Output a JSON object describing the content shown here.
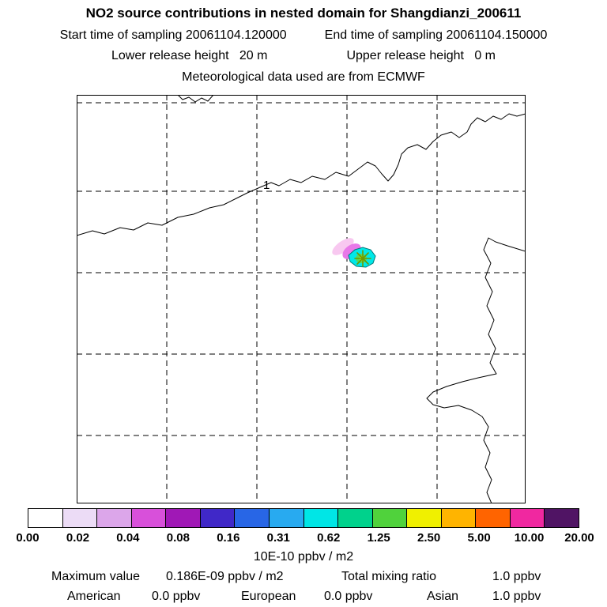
{
  "header": {
    "title": "NO2 source contributions in nested domain for Shangdianzi_200611",
    "start_time": "Start time of sampling 20061104.120000",
    "end_time": "End time of sampling 20061104.150000",
    "lower_release": "Lower release height   20 m",
    "upper_release": "Upper release height   0 m",
    "met_source": "Meteorological data used are from ECMWF"
  },
  "map": {
    "grid_label": "1"
  },
  "colorbar": {
    "units": "10E-10 ppbv / m2",
    "tick_labels": [
      "0.00",
      "0.02",
      "0.04",
      "0.08",
      "0.16",
      "0.31",
      "0.62",
      "1.25",
      "2.50",
      "5.00",
      "10.00",
      "20.00"
    ],
    "segment_colors": [
      "#ffffff",
      "#ecdcf6",
      "#dca6ea",
      "#d850da",
      "#a018b6",
      "#4028c8",
      "#2866e6",
      "#28aaf0",
      "#00e6e6",
      "#00d28c",
      "#50d23c",
      "#f0f000",
      "#ffb400",
      "#ff6400",
      "#f028a0",
      "#501464"
    ]
  },
  "footer": {
    "max_label": "Maximum value",
    "max_value": "0.186E-09 ppbv / m2",
    "mixing_label": "Total mixing ratio",
    "mixing_value": "1.0 ppbv",
    "regions": [
      {
        "name": "American",
        "value": "0.0 ppbv"
      },
      {
        "name": "European",
        "value": "0.0 ppbv"
      },
      {
        "name": "Asian",
        "value": "1.0 ppbv"
      }
    ]
  },
  "chart_data": {
    "type": "heatmap",
    "title": "NO2 source contributions in nested domain for Shangdianzi_200611",
    "station": "Shangdianzi",
    "period": "200611",
    "sampling_start": "20061104.120000",
    "sampling_end": "20061104.150000",
    "lower_release_height_m": 20,
    "upper_release_height_m": 0,
    "meteorology": "ECMWF",
    "colorbar_levels": [
      0.0,
      0.02,
      0.04,
      0.08,
      0.16,
      0.31,
      0.62,
      1.25,
      2.5,
      5.0,
      10.0,
      20.0
    ],
    "colorbar_units": "10E-10 ppbv / m2",
    "maximum_value": "0.186E-09 ppbv / m2",
    "total_mixing_ratio": "1.0 ppbv",
    "source_contributions": {
      "American": "0.0 ppbv",
      "European": "0.0 ppbv",
      "Asian": "1.0 ppbv"
    },
    "plume_location": "small colored plume at station marker near map center",
    "legend_position": "bottom"
  }
}
